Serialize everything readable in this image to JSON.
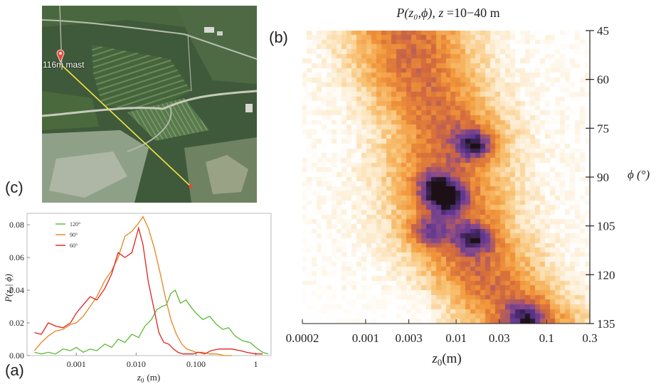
{
  "panel_labels": {
    "a": "(a)",
    "b": "(b)",
    "c": "(c)"
  },
  "map": {
    "mast_label": "116m mast",
    "colors": {
      "mast_marker": "#e8483a",
      "transect": "#f2e24a",
      "field": "#3f5a3a"
    }
  },
  "chart_data": [
    {
      "id": "a",
      "type": "line",
      "title": "",
      "xlabel_var": "z",
      "xlabel_sub": "0",
      "xlabel_unit": "(m)",
      "ylabel_text": "P(z₀| ϕ)",
      "xscale": "log",
      "xlim": [
        0.00015,
        1.8
      ],
      "ylim": [
        0,
        0.087
      ],
      "xticks": [
        0.001,
        0.01,
        0.1,
        1
      ],
      "xtick_labels": [
        "0.001",
        "0.010",
        "0.100",
        "1"
      ],
      "yticks": [
        0.0,
        0.02,
        0.04,
        0.06,
        0.08
      ],
      "ytick_labels": [
        "0.00",
        "0.02",
        "0.04",
        "0.06",
        "0.08"
      ],
      "legend_position": "top-left",
      "series": [
        {
          "name": "120°",
          "color": "#5cb832",
          "x": [
            0.0002,
            0.00026,
            0.00034,
            0.00045,
            0.0006,
            0.0008,
            0.001,
            0.0013,
            0.0017,
            0.0022,
            0.003,
            0.0039,
            0.005,
            0.0065,
            0.0085,
            0.011,
            0.014,
            0.018,
            0.022,
            0.027,
            0.032,
            0.038,
            0.045,
            0.055,
            0.068,
            0.085,
            0.1,
            0.13,
            0.17,
            0.22,
            0.28,
            0.35,
            0.45,
            0.6,
            0.8,
            1.0,
            1.3,
            1.6
          ],
          "y": [
            0.002,
            0.001,
            0.002,
            0.001,
            0.004,
            0.003,
            0.005,
            0.002,
            0.004,
            0.003,
            0.007,
            0.005,
            0.01,
            0.008,
            0.013,
            0.011,
            0.018,
            0.022,
            0.028,
            0.03,
            0.031,
            0.038,
            0.04,
            0.032,
            0.034,
            0.029,
            0.026,
            0.022,
            0.024,
            0.019,
            0.016,
            0.017,
            0.012,
            0.009,
            0.008,
            0.005,
            0.002,
            0.001
          ]
        },
        {
          "name": "90°",
          "color": "#e5871f",
          "x": [
            0.0002,
            0.00026,
            0.00034,
            0.00045,
            0.0006,
            0.0008,
            0.001,
            0.0013,
            0.0017,
            0.0022,
            0.003,
            0.0039,
            0.005,
            0.0065,
            0.0085,
            0.011,
            0.013,
            0.016,
            0.02,
            0.025,
            0.031,
            0.038,
            0.047,
            0.058,
            0.07,
            0.085,
            0.1,
            0.13,
            0.17,
            0.22,
            0.3,
            0.4
          ],
          "y": [
            0.003,
            0.008,
            0.012,
            0.015,
            0.016,
            0.019,
            0.02,
            0.024,
            0.03,
            0.036,
            0.046,
            0.052,
            0.06,
            0.073,
            0.076,
            0.081,
            0.085,
            0.078,
            0.066,
            0.051,
            0.035,
            0.022,
            0.013,
            0.007,
            0.004,
            0.003,
            0.002,
            0.002,
            0.001,
            0.001,
            0.0,
            0.0
          ]
        },
        {
          "name": "60°",
          "color": "#e0221e",
          "x": [
            0.0002,
            0.00026,
            0.00034,
            0.00045,
            0.0006,
            0.0008,
            0.001,
            0.0013,
            0.0017,
            0.0022,
            0.003,
            0.0039,
            0.005,
            0.0065,
            0.0085,
            0.011,
            0.013,
            0.016,
            0.02,
            0.024,
            0.029,
            0.035,
            0.042,
            0.05,
            0.06,
            0.075,
            0.09,
            0.11,
            0.14,
            0.18,
            0.24,
            0.3,
            0.4,
            0.55,
            0.7,
            1.0,
            1.3
          ],
          "y": [
            0.014,
            0.013,
            0.02,
            0.018,
            0.017,
            0.02,
            0.026,
            0.031,
            0.036,
            0.034,
            0.041,
            0.05,
            0.063,
            0.06,
            0.063,
            0.078,
            0.068,
            0.045,
            0.028,
            0.014,
            0.008,
            0.007,
            0.004,
            0.002,
            0.001,
            0.001,
            0.001,
            0.002,
            0.001,
            0.003,
            0.004,
            0.004,
            0.004,
            0.003,
            0.002,
            0.001,
            0.001
          ]
        }
      ]
    },
    {
      "id": "b",
      "type": "heatmap",
      "title_main": "P(z₀,ϕ), ",
      "title_z": "z",
      "title_rest": " =10−40 m",
      "xlabel_var": "z",
      "xlabel_sub": "0",
      "xlabel_unit": "(m)",
      "ylabel": "ϕ (°)",
      "xscale": "log",
      "xlim": [
        0.0002,
        0.3
      ],
      "ylim": [
        135,
        45
      ],
      "xticks": [
        0.0002,
        0.001,
        0.003,
        0.01,
        0.03,
        0.1,
        0.3
      ],
      "xtick_labels": [
        "0.0002",
        "0.001",
        "0.003",
        "0.01",
        "0.03",
        "0.1",
        "0.3"
      ],
      "yticks": [
        45,
        60,
        75,
        90,
        105,
        120,
        135
      ],
      "ytick_labels": [
        "45",
        "60",
        "75",
        "90",
        "105",
        "120",
        "135"
      ],
      "ridge": [
        {
          "phi": 45,
          "z0": 0.003
        },
        {
          "phi": 60,
          "z0": 0.004
        },
        {
          "phi": 75,
          "z0": 0.008
        },
        {
          "phi": 90,
          "z0": 0.008
        },
        {
          "phi": 105,
          "z0": 0.01
        },
        {
          "phi": 120,
          "z0": 0.02
        },
        {
          "phi": 135,
          "z0": 0.06
        }
      ],
      "hotspots": [
        {
          "phi": 80,
          "z0": 0.016,
          "level": 1.0
        },
        {
          "phi": 97,
          "z0": 0.008,
          "level": 1.0
        },
        {
          "phi": 93,
          "z0": 0.006,
          "level": 0.8
        },
        {
          "phi": 109,
          "z0": 0.016,
          "level": 0.85
        },
        {
          "phi": 107,
          "z0": 0.005,
          "level": 0.7
        },
        {
          "phi": 133,
          "z0": 0.06,
          "level": 0.8
        }
      ],
      "colormap": [
        "#ffffff",
        "#fde9c8",
        "#f8c273",
        "#f2963a",
        "#d36a3c",
        "#8a4a8a",
        "#5c3690",
        "#1c1016"
      ]
    }
  ]
}
